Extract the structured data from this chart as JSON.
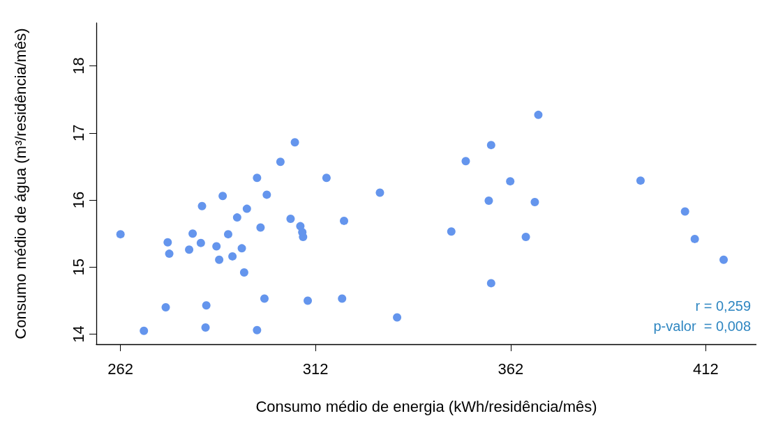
{
  "chart_data": {
    "type": "scatter",
    "xlabel": "Consumo médio de energia (kWh/residência/mês)",
    "ylabel": "Consumo médio de água (m³/residência/mês)",
    "x": [
      262.0,
      268.0,
      273.6,
      274.1,
      274.5,
      279.6,
      280.5,
      282.6,
      282.9,
      283.8,
      284.0,
      286.6,
      287.3,
      288.2,
      289.6,
      290.7,
      291.9,
      293.1,
      293.7,
      294.4,
      297.0,
      297.0,
      297.9,
      298.9,
      299.5,
      303.0,
      305.6,
      306.7,
      308.1,
      308.6,
      308.8,
      310.0,
      314.8,
      318.8,
      319.3,
      328.5,
      332.9,
      346.8,
      350.5,
      356.4,
      357.0,
      357.0,
      361.9,
      365.9,
      368.2,
      369.1,
      395.3,
      406.7,
      409.2,
      416.6
    ],
    "values": [
      15.49,
      14.05,
      14.4,
      15.37,
      15.2,
      15.26,
      15.5,
      15.36,
      15.91,
      14.1,
      14.43,
      15.31,
      15.11,
      16.06,
      15.49,
      15.16,
      15.74,
      15.28,
      14.92,
      15.87,
      14.06,
      16.33,
      15.59,
      14.53,
      16.08,
      16.57,
      15.72,
      16.86,
      15.61,
      15.52,
      15.45,
      14.5,
      16.33,
      14.53,
      15.69,
      16.11,
      14.25,
      15.53,
      16.58,
      15.99,
      16.82,
      14.76,
      16.28,
      15.45,
      15.97,
      17.27,
      16.29,
      15.83,
      15.42,
      15.11
    ],
    "color": "#6495ed",
    "marker": "circle",
    "grid": false,
    "xlim": [
      255.8,
      425
    ],
    "xticks": [
      262,
      312,
      362,
      412
    ],
    "ylim": [
      13.85,
      18.64
    ],
    "yticks": [
      14,
      15,
      16,
      17,
      18
    ],
    "annotations": [
      "r = 0,259",
      "p-valor  = 0,008"
    ]
  }
}
